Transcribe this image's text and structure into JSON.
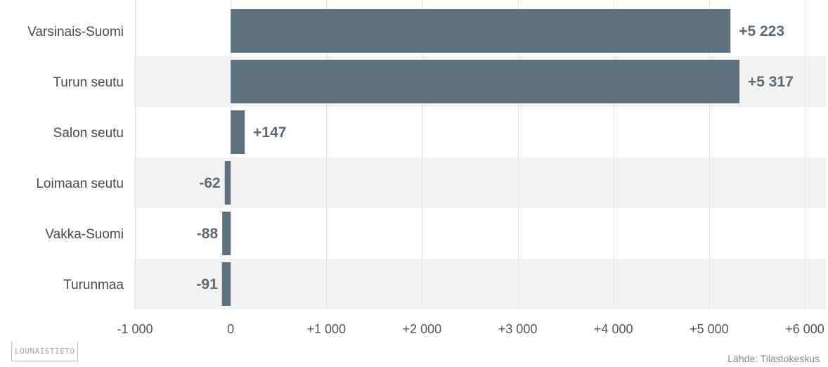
{
  "chart_data": {
    "type": "bar",
    "orientation": "horizontal",
    "categories": [
      "Varsinais-Suomi",
      "Turun seutu",
      "Salon seutu",
      "Loimaan seutu",
      "Vakka-Suomi",
      "Turunmaa"
    ],
    "values": [
      5223,
      5317,
      147,
      -62,
      -88,
      -91
    ],
    "value_labels": [
      "+5 223",
      "+5 317",
      "+147",
      "-62",
      "-88",
      "-91"
    ],
    "xlim": [
      -1000,
      6000
    ],
    "ticks": [
      -1000,
      0,
      1000,
      2000,
      3000,
      4000,
      5000,
      6000
    ],
    "tick_labels": [
      "-1 000",
      "0",
      "+1 000",
      "+2 000",
      "+3 000",
      "+4 000",
      "+5 000",
      "+6 000"
    ],
    "grid": true,
    "bar_color": "#5e727d",
    "stripe_color": "#f2f2f2",
    "gridline_color": "#e3e3e3"
  },
  "branding": {
    "logo_text": "LOUNAISTIETO"
  },
  "footer": {
    "source": "Lähde: Tilastokeskus"
  }
}
